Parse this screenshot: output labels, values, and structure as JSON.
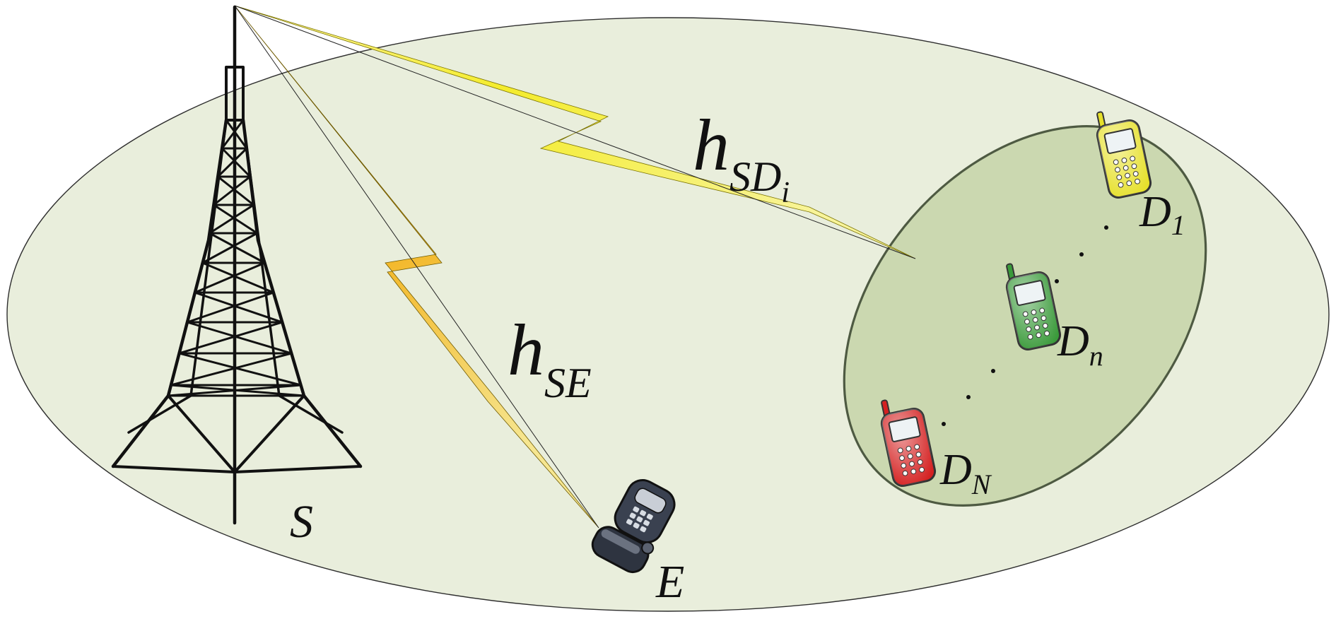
{
  "nodes": {
    "source": {
      "label": "S"
    },
    "eavesdropper": {
      "label": "E"
    },
    "destinations": [
      {
        "label": "D",
        "sub": "1",
        "color": "#e6e02a"
      },
      {
        "label": "D",
        "sub": "n",
        "color": "#3a9a3a"
      },
      {
        "label": "D",
        "sub": "N",
        "color": "#d42020"
      }
    ]
  },
  "links": {
    "sd": {
      "label": "h",
      "sub": "SD",
      "subsub": "i"
    },
    "se": {
      "label": "h",
      "sub": "SE"
    }
  },
  "colors": {
    "outer_region": "#e9eedc",
    "inner_region": "#cbd8b0",
    "inner_border": "#4e5a42",
    "bolt_light": "#fbf79a",
    "bolt_dark": "#f2d800",
    "bolt_orange": "#f3a90f"
  },
  "icons": {
    "tower": "lattice-tower-icon",
    "phone": "mobile-phone-icon",
    "flip_phone": "flip-phone-icon"
  }
}
